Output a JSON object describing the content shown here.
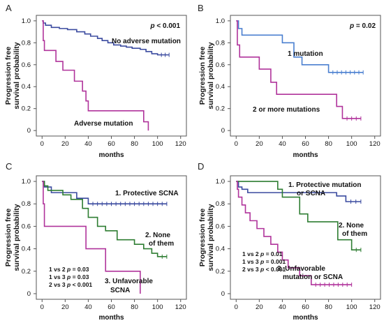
{
  "figure": {
    "colors": {
      "blue": "#3a4a9f",
      "magenta": "#b0339b",
      "green": "#2e7d32",
      "lightblue": "#4a7fd0",
      "frame": "#555555"
    }
  },
  "chart_data": [
    {
      "panel": "A",
      "type": "line",
      "ylabel": [
        "Progression free",
        "survival probability"
      ],
      "xlabel": "months",
      "xlim": [
        -5,
        125
      ],
      "ylim": [
        -0.05,
        1.05
      ],
      "xticks": [
        0,
        20,
        40,
        60,
        80,
        100,
        120
      ],
      "yticks": [
        0,
        0.2,
        0.4,
        0.6,
        0.8,
        1.0
      ],
      "pvalue": {
        "italic": "p",
        "rest": " < 0.001"
      },
      "series": [
        {
          "label": "No adverse mutation",
          "color": "blue",
          "x": [
            0,
            1,
            3,
            8,
            15,
            22,
            30,
            37,
            42,
            48,
            52,
            57,
            62,
            68,
            73,
            78,
            85,
            90,
            95,
            100,
            110
          ],
          "y": [
            1.0,
            0.98,
            0.96,
            0.94,
            0.93,
            0.92,
            0.9,
            0.88,
            0.86,
            0.84,
            0.82,
            0.8,
            0.78,
            0.77,
            0.76,
            0.75,
            0.74,
            0.72,
            0.7,
            0.69,
            0.69
          ]
        },
        {
          "label": "Adverse mutation",
          "color": "magenta",
          "x": [
            0,
            1,
            2,
            12,
            18,
            28,
            35,
            38,
            40,
            45,
            88,
            92
          ],
          "y": [
            1.0,
            0.82,
            0.73,
            0.63,
            0.55,
            0.45,
            0.36,
            0.27,
            0.18,
            0.18,
            0.08,
            0.0
          ]
        }
      ],
      "labels": [
        {
          "text": "No adverse mutation",
          "color": "blue"
        },
        {
          "text": "Adverse mutation",
          "color": "magenta"
        }
      ]
    },
    {
      "panel": "B",
      "type": "line",
      "ylabel": [
        "Progression free",
        "survival probability"
      ],
      "xlabel": "months",
      "xlim": [
        -5,
        125
      ],
      "ylim": [
        -0.05,
        1.05
      ],
      "xticks": [
        0,
        20,
        40,
        60,
        80,
        100,
        120
      ],
      "yticks": [
        0,
        0.2,
        0.4,
        0.6,
        0.8,
        1.0
      ],
      "pvalue": {
        "italic": "p",
        "rest": " = 0.02"
      },
      "series": [
        {
          "label": "1 mutation",
          "color": "lightblue",
          "x": [
            0,
            2,
            5,
            10,
            40,
            50,
            57,
            80,
            110
          ],
          "y": [
            1.0,
            0.93,
            0.87,
            0.87,
            0.8,
            0.67,
            0.6,
            0.53,
            0.53
          ]
        },
        {
          "label": "2 or more mutations",
          "color": "magenta",
          "x": [
            0,
            1,
            3,
            20,
            30,
            35,
            87,
            92,
            108
          ],
          "y": [
            1.0,
            0.78,
            0.67,
            0.56,
            0.44,
            0.33,
            0.22,
            0.11,
            0.11
          ]
        }
      ],
      "labels": [
        {
          "text": "1 mutation",
          "color": "lightblue"
        },
        {
          "text": "2 or more mutations",
          "color": "magenta"
        }
      ]
    },
    {
      "panel": "C",
      "type": "line",
      "ylabel": [
        "Progression free",
        "survival probability"
      ],
      "xlabel": "months",
      "xlim": [
        -5,
        125
      ],
      "ylim": [
        -0.05,
        1.05
      ],
      "xticks": [
        0,
        20,
        40,
        60,
        80,
        100,
        120
      ],
      "yticks": [
        0,
        0.2,
        0.4,
        0.6,
        0.8,
        1.0
      ],
      "series": [
        {
          "label": "1. Protective SCNA",
          "color": "blue",
          "x": [
            0,
            2,
            8,
            30,
            40,
            108
          ],
          "y": [
            1.0,
            0.95,
            0.9,
            0.85,
            0.8,
            0.8
          ]
        },
        {
          "label": "2. None of them",
          "color": "green",
          "x": [
            0,
            2,
            5,
            18,
            25,
            35,
            40,
            48,
            55,
            65,
            80,
            88,
            95,
            100,
            108
          ],
          "y": [
            1.0,
            0.96,
            0.92,
            0.88,
            0.84,
            0.76,
            0.68,
            0.6,
            0.56,
            0.48,
            0.44,
            0.4,
            0.36,
            0.33,
            0.33
          ]
        },
        {
          "label": "3. Unfavorable SCNA",
          "color": "magenta",
          "x": [
            0,
            1,
            2,
            38,
            55,
            85,
            85
          ],
          "y": [
            1.0,
            0.8,
            0.6,
            0.4,
            0.2,
            0.2,
            0.0
          ]
        }
      ],
      "labels": [
        {
          "text": "1. Protective SCNA",
          "color": "blue"
        },
        {
          "text": "2. None",
          "color": "green"
        },
        {
          "text": "of them",
          "color": "green"
        },
        {
          "text": "3. Unfavorable",
          "color": "magenta"
        },
        {
          "text": "SCNA",
          "color": "magenta"
        }
      ],
      "comparisons": [
        {
          "pre": "1 vs 2 ",
          "italic": "p",
          "post": " = 0.03"
        },
        {
          "pre": "1 vs 3 ",
          "italic": "p",
          "post": " = 0.03"
        },
        {
          "pre": "2 vs 3 ",
          "italic": "p",
          "post": " < 0.001"
        }
      ]
    },
    {
      "panel": "D",
      "type": "line",
      "ylabel": [
        "Progression free",
        "survival probability"
      ],
      "xlabel": "months",
      "xlim": [
        -5,
        125
      ],
      "ylim": [
        -0.05,
        1.05
      ],
      "xticks": [
        0,
        20,
        40,
        60,
        80,
        100,
        120
      ],
      "yticks": [
        0,
        0.2,
        0.4,
        0.6,
        0.8,
        1.0
      ],
      "series": [
        {
          "label": "1. Protective mutation or SCNA",
          "color": "blue",
          "x": [
            0,
            2,
            5,
            10,
            87,
            95,
            108
          ],
          "y": [
            1.0,
            0.95,
            0.93,
            0.9,
            0.87,
            0.82,
            0.82
          ]
        },
        {
          "label": "2. None of them",
          "color": "green",
          "x": [
            0,
            1,
            36,
            40,
            55,
            62,
            88,
            100,
            108
          ],
          "y": [
            1.0,
            1.0,
            0.93,
            0.86,
            0.71,
            0.64,
            0.48,
            0.39,
            0.39
          ]
        },
        {
          "label": "3. Unfavorable mutation or SCNA",
          "color": "magenta",
          "x": [
            0,
            1,
            2,
            5,
            8,
            12,
            18,
            24,
            30,
            36,
            40,
            45,
            55,
            65,
            100
          ],
          "y": [
            1.0,
            0.93,
            0.86,
            0.79,
            0.72,
            0.65,
            0.58,
            0.51,
            0.44,
            0.37,
            0.3,
            0.23,
            0.16,
            0.08,
            0.08
          ]
        }
      ],
      "labels": [
        {
          "text": "1. Protective mutation",
          "color": "blue"
        },
        {
          "text": "or SCNA",
          "color": "blue"
        },
        {
          "text": "2. None",
          "color": "green"
        },
        {
          "text": "of them",
          "color": "green"
        },
        {
          "text": "3. Unfavorable",
          "color": "magenta"
        },
        {
          "text": "mutation or SCNA",
          "color": "magenta"
        }
      ],
      "comparisons": [
        {
          "pre": "1 vs 2 ",
          "italic": "p",
          "post": " = 0.01"
        },
        {
          "pre": "1 vs 3 ",
          "italic": "p",
          "post": " = 0.001"
        },
        {
          "pre": "2 vs 3 ",
          "italic": "p",
          "post": " < 0.001"
        }
      ]
    }
  ]
}
